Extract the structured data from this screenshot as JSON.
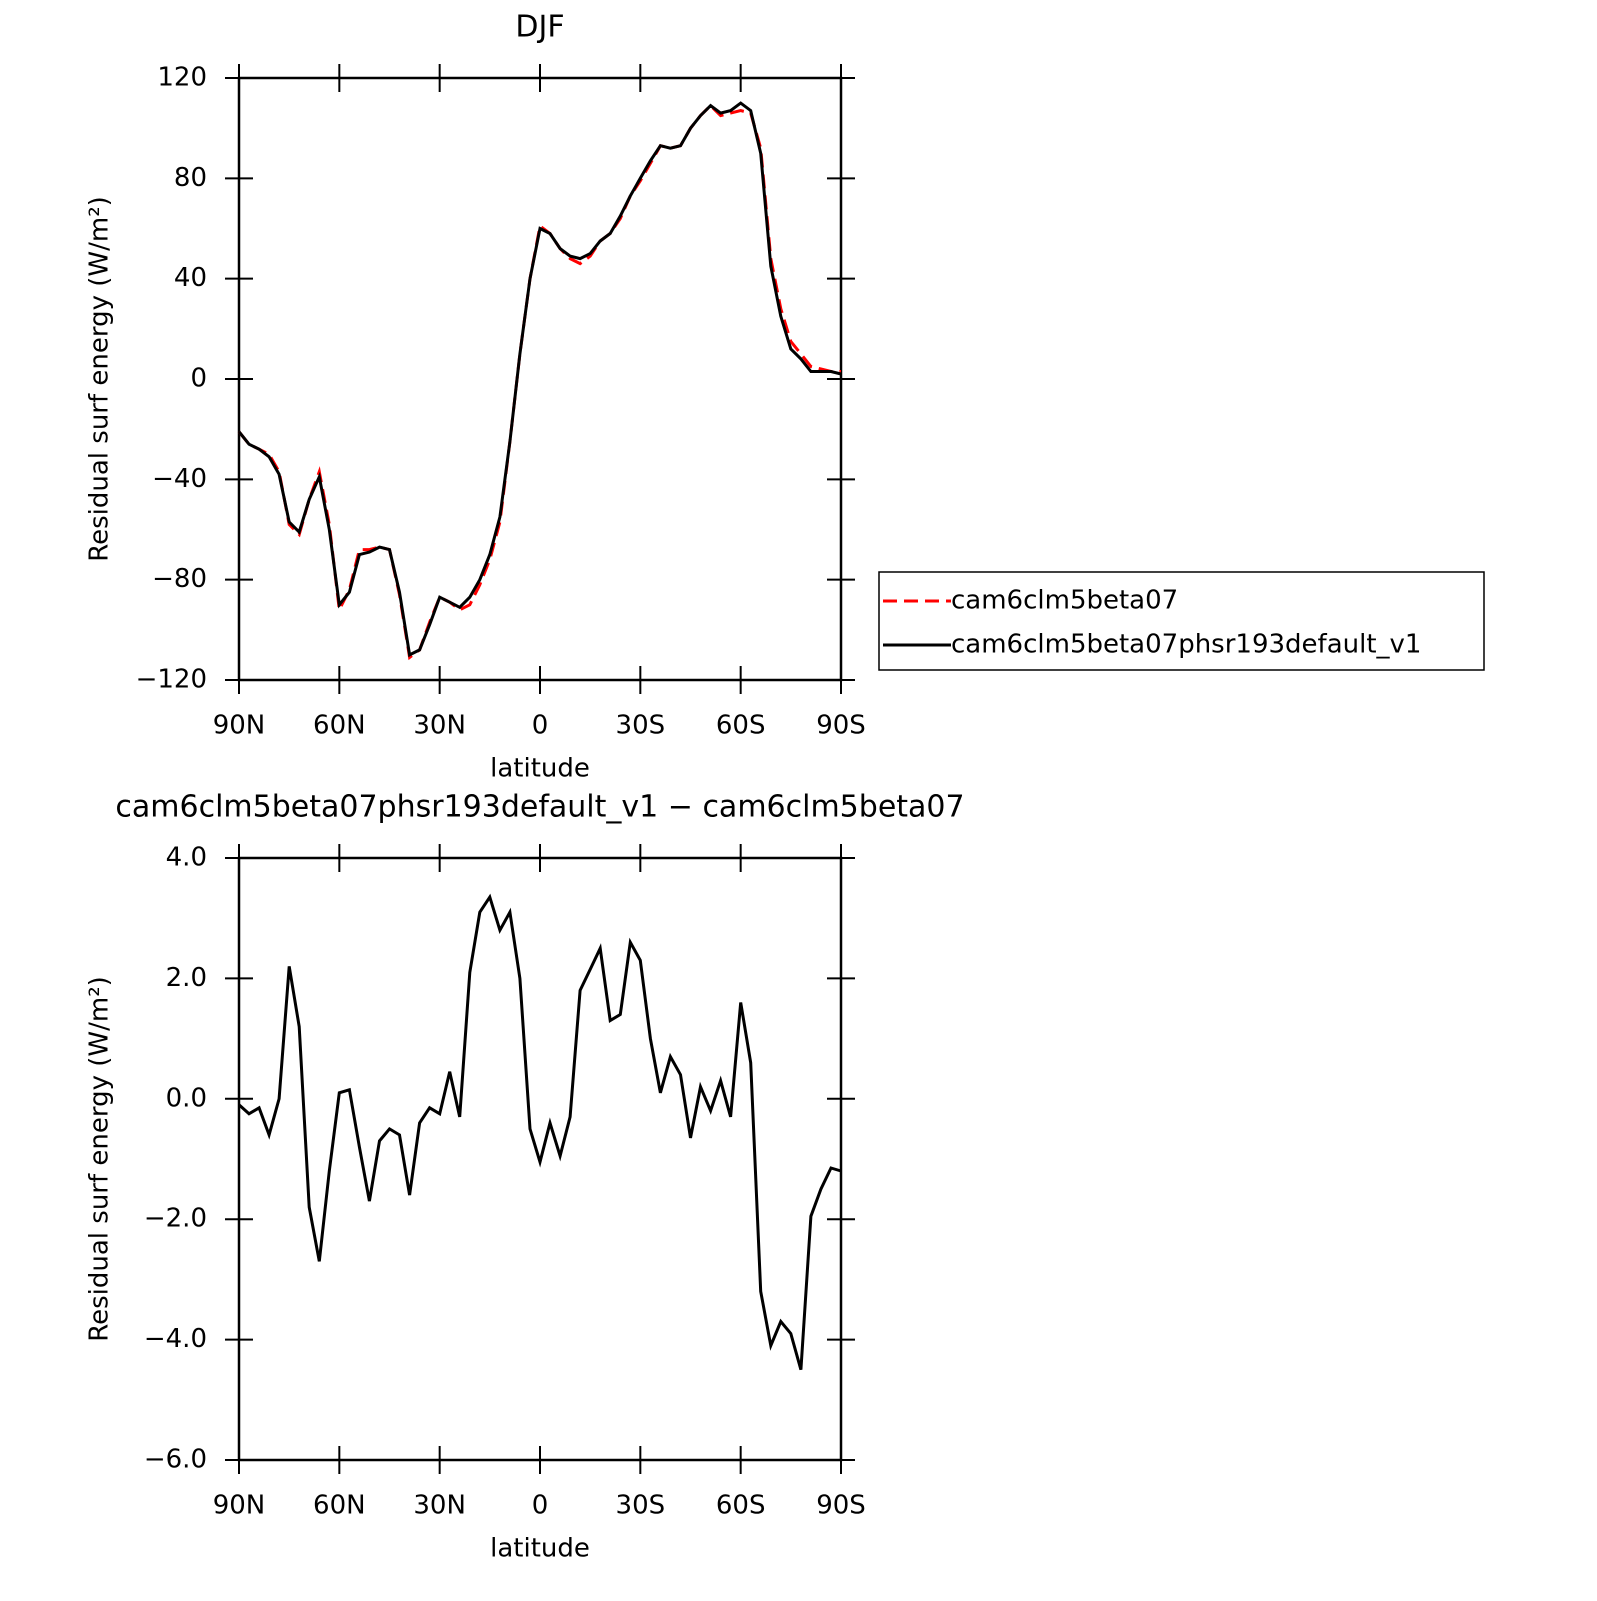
{
  "chart_data": [
    {
      "type": "line",
      "title": "DJF",
      "xlabel": "latitude",
      "ylabel": "Residual surf energy (W/m²)",
      "x": [
        90,
        87,
        84,
        81,
        78,
        75,
        72,
        69,
        66,
        63,
        60,
        57,
        54,
        51,
        48,
        45,
        42,
        39,
        36,
        33,
        30,
        27,
        24,
        21,
        18,
        15,
        12,
        9,
        6,
        3,
        0,
        -3,
        -6,
        -9,
        -12,
        -15,
        -18,
        -21,
        -24,
        -27,
        -30,
        -33,
        -36,
        -39,
        -42,
        -45,
        -48,
        -51,
        -54,
        -57,
        -60,
        -63,
        -66,
        -69,
        -72,
        -75,
        -78,
        -81,
        -84,
        -87,
        -90
      ],
      "xlim": [
        90,
        -90
      ],
      "xticks": [
        {
          "value": 90,
          "label": "90N"
        },
        {
          "value": 60,
          "label": "60N"
        },
        {
          "value": 30,
          "label": "30N"
        },
        0,
        {
          "value": -30,
          "label": "30S"
        },
        {
          "value": -60,
          "label": "60S"
        },
        {
          "value": -90,
          "label": "90S"
        }
      ],
      "ylim": [
        -120,
        120
      ],
      "yticks": [
        {
          "value": -120,
          "label": "−120"
        },
        {
          "value": -80,
          "label": "−80"
        },
        {
          "value": -40,
          "label": "−40"
        },
        0,
        40,
        80,
        120
      ],
      "legend": "right",
      "series": [
        {
          "name": "cam6clm5beta07",
          "color": "#ff0000",
          "line_style": "dashed",
          "values": [
            -21,
            -26,
            -28,
            -30,
            -37,
            -58,
            -62,
            -48,
            -37,
            -58,
            -92,
            -84,
            -68,
            -68,
            -67,
            -68,
            -86,
            -111,
            -108,
            -97,
            -87,
            -89,
            -92,
            -90,
            -82,
            -72,
            -57,
            -25,
            10,
            40,
            61,
            58,
            52,
            48,
            46,
            49,
            55,
            58,
            64,
            73,
            79,
            86,
            93,
            92,
            93,
            100,
            105,
            109,
            105,
            106,
            107,
            106,
            92,
            48,
            28,
            15,
            10,
            5,
            4,
            3,
            3
          ]
        },
        {
          "name": "cam6clm5beta07phsr193default_v1",
          "color": "#000000",
          "line_style": "solid",
          "values": [
            -21,
            -26,
            -28,
            -31,
            -38,
            -57,
            -61,
            -48,
            -39,
            -60,
            -90,
            -85,
            -70,
            -69,
            -67,
            -68,
            -85,
            -110,
            -108,
            -98,
            -87,
            -89,
            -91,
            -87,
            -80,
            -70,
            -55,
            -25,
            10,
            40,
            60,
            58,
            52,
            49,
            48,
            50,
            55,
            58,
            65,
            73,
            80,
            87,
            93,
            92,
            93,
            100,
            105,
            109,
            106,
            107,
            110,
            107,
            90,
            45,
            25,
            12,
            8,
            3,
            3,
            3,
            2
          ]
        }
      ]
    },
    {
      "type": "line",
      "title": "cam6clm5beta07phsr193default_v1 − cam6clm5beta07",
      "xlabel": "latitude",
      "ylabel": "Residual surf energy (W/m²)",
      "x": [
        90,
        87,
        84,
        81,
        78,
        75,
        72,
        69,
        66,
        63,
        60,
        57,
        54,
        51,
        48,
        45,
        42,
        39,
        36,
        33,
        30,
        27,
        24,
        21,
        18,
        15,
        12,
        9,
        6,
        3,
        0,
        -3,
        -6,
        -9,
        -12,
        -15,
        -18,
        -21,
        -24,
        -27,
        -30,
        -33,
        -36,
        -39,
        -42,
        -45,
        -48,
        -51,
        -54,
        -57,
        -60,
        -63,
        -66,
        -69,
        -72,
        -75,
        -78,
        -81,
        -84,
        -87,
        -90
      ],
      "xlim": [
        90,
        -90
      ],
      "xticks": [
        {
          "value": 90,
          "label": "90N"
        },
        {
          "value": 60,
          "label": "60N"
        },
        {
          "value": 30,
          "label": "30N"
        },
        0,
        {
          "value": -30,
          "label": "30S"
        },
        {
          "value": -60,
          "label": "60S"
        },
        {
          "value": -90,
          "label": "90S"
        }
      ],
      "ylim": [
        -6,
        4
      ],
      "yticks": [
        {
          "value": -6,
          "label": "−6.0"
        },
        {
          "value": -4,
          "label": "−4.0"
        },
        {
          "value": -2,
          "label": "−2.0"
        },
        {
          "value": 0,
          "label": "0.0"
        },
        {
          "value": 2,
          "label": "2.0"
        },
        {
          "value": 4,
          "label": "4.0"
        }
      ],
      "color": "#000000",
      "values": [
        -0.1,
        -0.25,
        -0.15,
        -0.6,
        0.0,
        2.2,
        1.2,
        -1.8,
        -2.7,
        -1.2,
        0.1,
        0.15,
        -0.8,
        -1.7,
        -0.7,
        -0.5,
        -0.6,
        -1.6,
        -0.4,
        -0.15,
        -0.25,
        0.45,
        -0.3,
        2.1,
        3.1,
        3.35,
        2.8,
        3.1,
        2.0,
        -0.5,
        -1.05,
        -0.4,
        -0.95,
        -0.3,
        1.8,
        2.15,
        2.5,
        1.3,
        1.4,
        2.6,
        2.3,
        1.0,
        0.1,
        0.7,
        0.4,
        -0.65,
        0.2,
        -0.2,
        0.3,
        -0.3,
        1.6,
        0.6,
        -3.2,
        -4.1,
        -3.7,
        -3.9,
        -4.5,
        -1.95,
        -1.5,
        -1.15,
        -1.2
      ]
    }
  ]
}
